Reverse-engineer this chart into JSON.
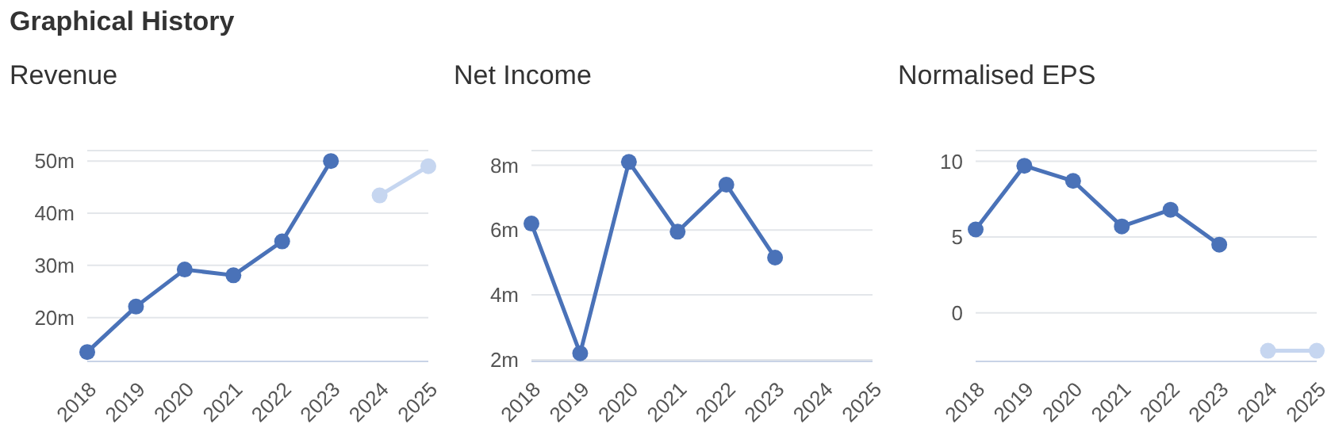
{
  "chart_data": [
    {
      "type": "other",
      "title": "Graphical History"
    },
    {
      "type": "line",
      "title": "Revenue",
      "categories": [
        "2018",
        "2019",
        "2020",
        "2021",
        "2022",
        "2023",
        "2024",
        "2025"
      ],
      "series": [
        {
          "color": "#4a72b8",
          "values": [
            13.4,
            22.1,
            29.2,
            28.1,
            34.6,
            50,
            null,
            null
          ]
        },
        {
          "color": "#c6d6f0",
          "values": [
            null,
            null,
            null,
            null,
            null,
            null,
            43.4,
            49.0
          ]
        }
      ],
      "ylim": [
        11.6,
        52
      ],
      "yticks": [
        {
          "value": 20,
          "label": "20m"
        },
        {
          "value": 30,
          "label": "30m"
        },
        {
          "value": 40,
          "label": "40m"
        },
        {
          "value": 50,
          "label": "50m"
        }
      ],
      "grid": "y",
      "marker": "circle"
    },
    {
      "type": "line",
      "title": "Net Income",
      "categories": [
        "2018",
        "2019",
        "2020",
        "2021",
        "2022",
        "2023",
        "2024",
        "2025"
      ],
      "series": [
        {
          "color": "#4a72b8",
          "values": [
            6.2,
            2.2,
            8.1,
            5.95,
            7.4,
            5.15,
            null,
            null
          ]
        }
      ],
      "ylim": [
        1.95,
        8.45
      ],
      "yticks": [
        {
          "value": 2,
          "label": "2m"
        },
        {
          "value": 4,
          "label": "4m"
        },
        {
          "value": 6,
          "label": "6m"
        },
        {
          "value": 8,
          "label": "8m"
        }
      ],
      "grid": "y",
      "marker": "circle"
    },
    {
      "type": "line",
      "title": "Normalised EPS",
      "categories": [
        "2018",
        "2019",
        "2020",
        "2021",
        "2022",
        "2023",
        "2024",
        "2025"
      ],
      "series": [
        {
          "color": "#4a72b8",
          "values": [
            5.5,
            9.7,
            8.7,
            5.7,
            6.8,
            4.5,
            null,
            null
          ]
        },
        {
          "color": "#c6d6f0",
          "values": [
            null,
            null,
            null,
            null,
            null,
            null,
            -2.5,
            -2.5
          ]
        }
      ],
      "ylim": [
        -3.2,
        10.7
      ],
      "yticks": [
        0,
        5,
        10
      ],
      "grid": "y",
      "marker": "circle"
    }
  ]
}
